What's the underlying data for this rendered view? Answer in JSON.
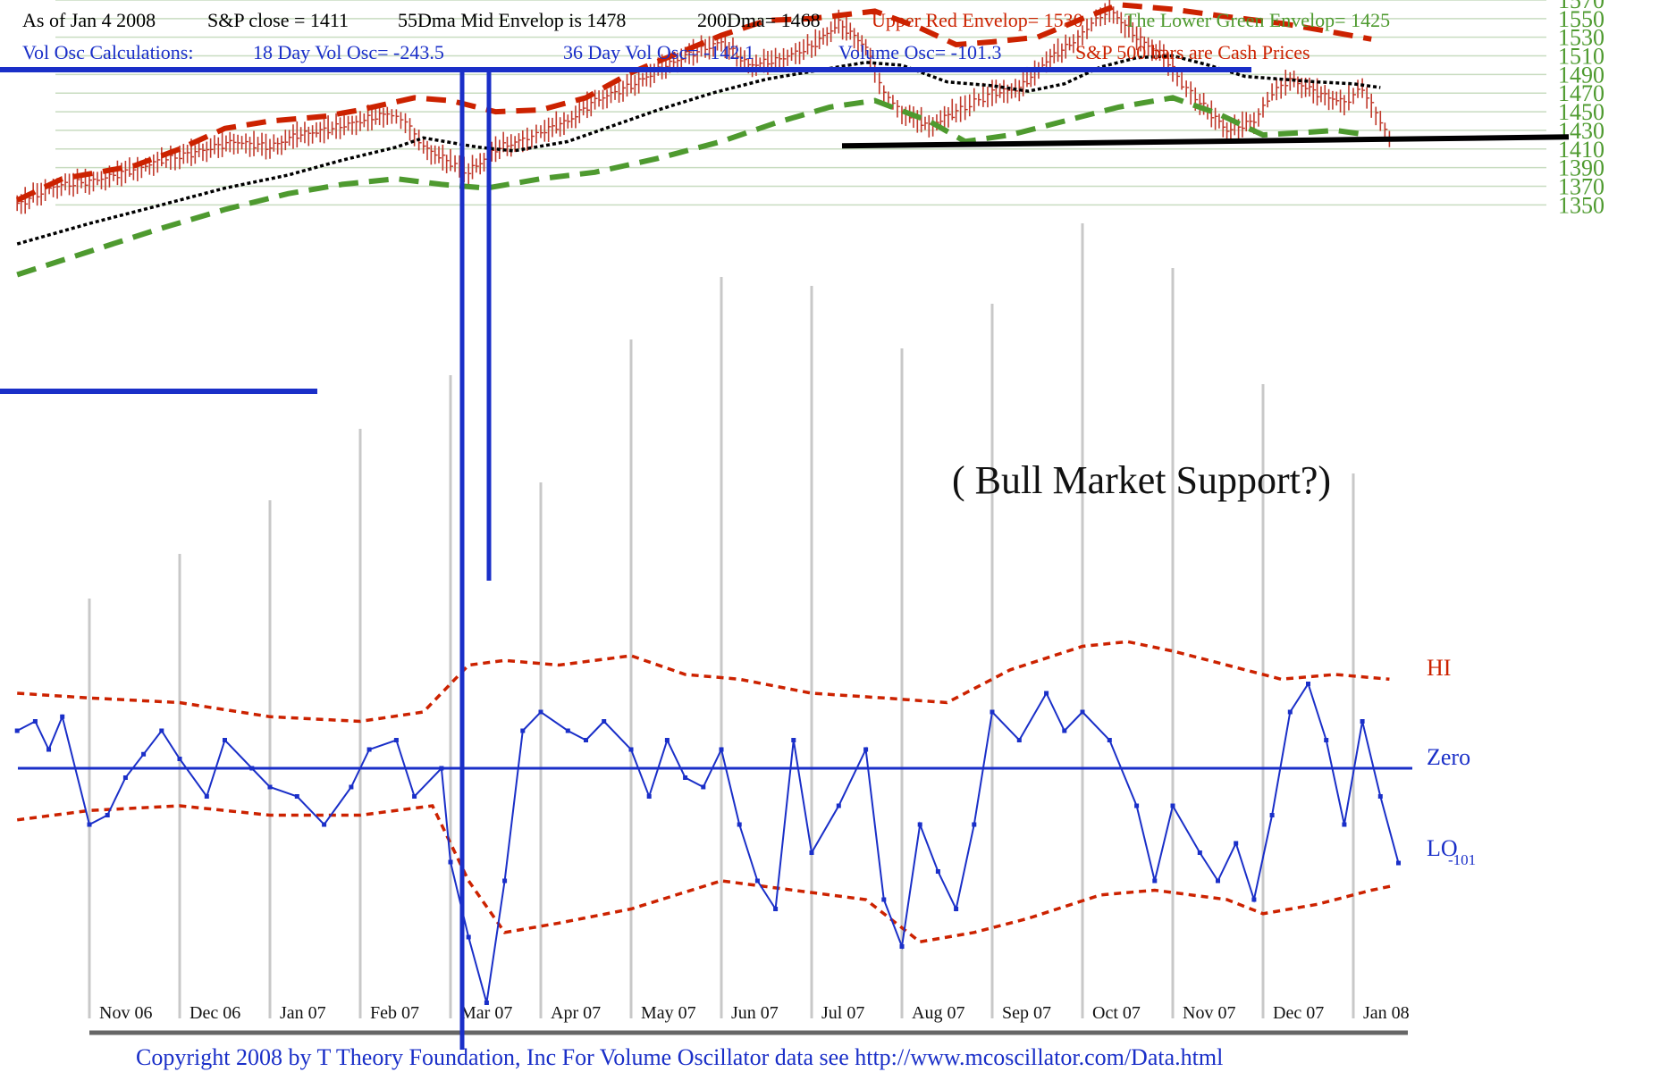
{
  "header": {
    "line1": [
      {
        "text": "As of Jan 4  2008",
        "color": "#000000"
      },
      {
        "text": "S&P close = 1411",
        "color": "#000000"
      },
      {
        "text": "55Dma Mid Envelop is  1478",
        "color": "#000000"
      },
      {
        "text": "200Dma=  1468",
        "color": "#000000"
      },
      {
        "text": "Upper Red Envelop= 1530",
        "color": "#cc2200"
      },
      {
        "text": "The Lower Green Envelop=  1425",
        "color": "#4e9a2f"
      }
    ],
    "line2": [
      {
        "text": "Vol Osc Calculations:",
        "color": "#1a2fc8"
      },
      {
        "text": "18 Day Vol Osc= -243.5",
        "color": "#1a2fc8"
      },
      {
        "text": "36 Day Vol Osc= -142.1",
        "color": "#1a2fc8"
      },
      {
        "text": "Volume Osc= -101.3",
        "color": "#1a2fc8"
      },
      {
        "text": "S&P 500 bars are Cash Prices",
        "color": "#cc2200"
      }
    ]
  },
  "annotation": "( Bull Market Support?)",
  "support_level": 1421,
  "osc_labels": {
    "hi": "HI",
    "zero": "Zero",
    "lo": "LO",
    "lo_value": "-101"
  },
  "copyright": "Copyright 2008 by T Theory Foundation, Inc  For Volume Oscillator data see http://www.mcoscillator.com/Data.html",
  "colors": {
    "price_bars": "#c0392b",
    "upper_envelope": "#cc2200",
    "lower_envelope": "#4e9a2f",
    "mid_dma": "#000000",
    "oscillator": "#1a2fc8",
    "grid": "#c8dcc0",
    "month_lines": "#c8c8c8"
  },
  "chart_data": {
    "type": "line",
    "title": "",
    "x_tick_labels": [
      "Nov 06",
      "Dec 06",
      "Jan 07",
      "Feb 07",
      "Mar 07",
      "Apr 07",
      "May 07",
      "Jun 07",
      "Jul 07",
      "Aug 07",
      "Sep 07",
      "Oct 07",
      "Nov 07",
      "Dec 07",
      "Jan 08"
    ],
    "price_axis": {
      "ticks": [
        1350,
        1370,
        1390,
        1410,
        1430,
        1450,
        1470,
        1490,
        1510,
        1530,
        1550,
        1570
      ],
      "ylim": [
        1340,
        1575
      ]
    },
    "time_axis": {
      "unit": "month index (0 = start of Nov 06)",
      "xlim": [
        -0.8,
        14.5
      ]
    },
    "series": [
      {
        "name": "S&P 500 close (approx.)",
        "points": [
          [
            -0.8,
            1350
          ],
          [
            -0.4,
            1370
          ],
          [
            0.0,
            1375
          ],
          [
            0.4,
            1385
          ],
          [
            0.8,
            1398
          ],
          [
            1.0,
            1402
          ],
          [
            1.3,
            1410
          ],
          [
            1.6,
            1418
          ],
          [
            2.0,
            1412
          ],
          [
            2.3,
            1425
          ],
          [
            2.6,
            1430
          ],
          [
            3.0,
            1440
          ],
          [
            3.3,
            1448
          ],
          [
            3.5,
            1440
          ],
          [
            3.7,
            1412
          ],
          [
            4.0,
            1395
          ],
          [
            4.2,
            1385
          ],
          [
            4.5,
            1410
          ],
          [
            4.8,
            1420
          ],
          [
            5.0,
            1428
          ],
          [
            5.3,
            1440
          ],
          [
            5.6,
            1462
          ],
          [
            6.0,
            1478
          ],
          [
            6.3,
            1495
          ],
          [
            6.6,
            1510
          ],
          [
            7.0,
            1525
          ],
          [
            7.3,
            1500
          ],
          [
            7.6,
            1505
          ],
          [
            8.0,
            1520
          ],
          [
            8.3,
            1545
          ],
          [
            8.6,
            1520
          ],
          [
            8.8,
            1470
          ],
          [
            9.0,
            1450
          ],
          [
            9.3,
            1435
          ],
          [
            9.6,
            1450
          ],
          [
            9.8,
            1460
          ],
          [
            10.0,
            1470
          ],
          [
            10.3,
            1475
          ],
          [
            10.6,
            1505
          ],
          [
            10.9,
            1525
          ],
          [
            11.1,
            1545
          ],
          [
            11.3,
            1560
          ],
          [
            11.6,
            1530
          ],
          [
            11.9,
            1510
          ],
          [
            12.1,
            1480
          ],
          [
            12.3,
            1460
          ],
          [
            12.6,
            1430
          ],
          [
            12.9,
            1440
          ],
          [
            13.1,
            1470
          ],
          [
            13.3,
            1485
          ],
          [
            13.6,
            1470
          ],
          [
            13.9,
            1460
          ],
          [
            14.1,
            1475
          ],
          [
            14.3,
            1440
          ],
          [
            14.45,
            1411
          ]
        ]
      },
      {
        "name": "Upper Red Envelop (approx.)",
        "points": [
          [
            -0.8,
            1355
          ],
          [
            -0.3,
            1378
          ],
          [
            0.5,
            1392
          ],
          [
            1.0,
            1410
          ],
          [
            1.5,
            1432
          ],
          [
            2.0,
            1440
          ],
          [
            2.6,
            1445
          ],
          [
            3.0,
            1452
          ],
          [
            3.6,
            1465
          ],
          [
            4.0,
            1462
          ],
          [
            4.5,
            1450
          ],
          [
            5.0,
            1452
          ],
          [
            5.5,
            1465
          ],
          [
            6.0,
            1492
          ],
          [
            6.5,
            1512
          ],
          [
            7.0,
            1532
          ],
          [
            7.5,
            1548
          ],
          [
            8.0,
            1550
          ],
          [
            8.7,
            1558
          ],
          [
            9.2,
            1540
          ],
          [
            9.6,
            1522
          ],
          [
            10.0,
            1525
          ],
          [
            10.5,
            1530
          ],
          [
            11.0,
            1550
          ],
          [
            11.4,
            1565
          ],
          [
            12.0,
            1560
          ],
          [
            12.6,
            1552
          ],
          [
            13.2,
            1545
          ],
          [
            13.8,
            1535
          ],
          [
            14.2,
            1528
          ]
        ]
      },
      {
        "name": "55Dma Mid Envelop (approx.)",
        "points": [
          [
            -0.8,
            1308
          ],
          [
            0.0,
            1330
          ],
          [
            0.8,
            1350
          ],
          [
            1.5,
            1368
          ],
          [
            2.2,
            1382
          ],
          [
            2.8,
            1398
          ],
          [
            3.4,
            1412
          ],
          [
            3.7,
            1422
          ],
          [
            4.3,
            1412
          ],
          [
            4.7,
            1408
          ],
          [
            5.3,
            1418
          ],
          [
            5.8,
            1435
          ],
          [
            6.3,
            1452
          ],
          [
            6.9,
            1470
          ],
          [
            7.5,
            1485
          ],
          [
            8.1,
            1495
          ],
          [
            8.6,
            1503
          ],
          [
            9.0,
            1500
          ],
          [
            9.5,
            1482
          ],
          [
            10.0,
            1478
          ],
          [
            10.4,
            1472
          ],
          [
            10.8,
            1480
          ],
          [
            11.2,
            1498
          ],
          [
            11.6,
            1508
          ],
          [
            12.0,
            1510
          ],
          [
            12.4,
            1500
          ],
          [
            12.8,
            1488
          ],
          [
            13.2,
            1485
          ],
          [
            13.6,
            1482
          ],
          [
            14.0,
            1480
          ],
          [
            14.3,
            1476
          ]
        ]
      },
      {
        "name": "Lower Green Envelop (approx.)",
        "points": [
          [
            -0.8,
            1275
          ],
          [
            0.0,
            1300
          ],
          [
            0.8,
            1325
          ],
          [
            1.5,
            1345
          ],
          [
            2.2,
            1362
          ],
          [
            2.8,
            1372
          ],
          [
            3.4,
            1378
          ],
          [
            3.9,
            1372
          ],
          [
            4.4,
            1368
          ],
          [
            5.0,
            1378
          ],
          [
            5.6,
            1385
          ],
          [
            6.3,
            1400
          ],
          [
            7.0,
            1418
          ],
          [
            7.6,
            1438
          ],
          [
            8.2,
            1455
          ],
          [
            8.7,
            1462
          ],
          [
            9.3,
            1440
          ],
          [
            9.7,
            1418
          ],
          [
            10.2,
            1425
          ],
          [
            10.8,
            1440
          ],
          [
            11.4,
            1455
          ],
          [
            12.0,
            1465
          ],
          [
            12.5,
            1448
          ],
          [
            13.0,
            1425
          ],
          [
            13.5,
            1428
          ],
          [
            13.8,
            1430
          ],
          [
            14.1,
            1426
          ]
        ]
      }
    ],
    "oscillator": {
      "ylim": [
        -260,
        150
      ],
      "zero": 0,
      "current": -101,
      "series": [
        {
          "name": "Volume Osc (approx.)",
          "points": [
            [
              -0.8,
              40
            ],
            [
              -0.6,
              50
            ],
            [
              -0.45,
              20
            ],
            [
              -0.3,
              55
            ],
            [
              0.0,
              -60
            ],
            [
              0.2,
              -50
            ],
            [
              0.4,
              -10
            ],
            [
              0.6,
              15
            ],
            [
              0.8,
              40
            ],
            [
              1.0,
              10
            ],
            [
              1.3,
              -30
            ],
            [
              1.5,
              30
            ],
            [
              1.8,
              0
            ],
            [
              2.0,
              -20
            ],
            [
              2.3,
              -30
            ],
            [
              2.6,
              -60
            ],
            [
              2.9,
              -20
            ],
            [
              3.1,
              20
            ],
            [
              3.4,
              30
            ],
            [
              3.6,
              -30
            ],
            [
              3.9,
              0
            ],
            [
              4.0,
              -100
            ],
            [
              4.2,
              -180
            ],
            [
              4.4,
              -250
            ],
            [
              4.6,
              -120
            ],
            [
              4.8,
              40
            ],
            [
              5.0,
              60
            ],
            [
              5.3,
              40
            ],
            [
              5.5,
              30
            ],
            [
              5.7,
              50
            ],
            [
              6.0,
              20
            ],
            [
              6.2,
              -30
            ],
            [
              6.4,
              30
            ],
            [
              6.6,
              -10
            ],
            [
              6.8,
              -20
            ],
            [
              7.0,
              20
            ],
            [
              7.2,
              -60
            ],
            [
              7.4,
              -120
            ],
            [
              7.6,
              -150
            ],
            [
              7.8,
              30
            ],
            [
              8.0,
              -90
            ],
            [
              8.3,
              -40
            ],
            [
              8.6,
              20
            ],
            [
              8.8,
              -140
            ],
            [
              9.0,
              -190
            ],
            [
              9.2,
              -60
            ],
            [
              9.4,
              -110
            ],
            [
              9.6,
              -150
            ],
            [
              9.8,
              -60
            ],
            [
              10.0,
              60
            ],
            [
              10.3,
              30
            ],
            [
              10.6,
              80
            ],
            [
              10.8,
              40
            ],
            [
              11.0,
              60
            ],
            [
              11.3,
              30
            ],
            [
              11.6,
              -40
            ],
            [
              11.8,
              -120
            ],
            [
              12.0,
              -40
            ],
            [
              12.3,
              -90
            ],
            [
              12.5,
              -120
            ],
            [
              12.7,
              -80
            ],
            [
              12.9,
              -140
            ],
            [
              13.1,
              -50
            ],
            [
              13.3,
              60
            ],
            [
              13.5,
              90
            ],
            [
              13.7,
              30
            ],
            [
              13.9,
              -60
            ],
            [
              14.1,
              50
            ],
            [
              14.3,
              -30
            ],
            [
              14.5,
              -101
            ]
          ]
        },
        {
          "name": "HI band (approx.)",
          "points": [
            [
              -0.8,
              80
            ],
            [
              0.0,
              75
            ],
            [
              1.0,
              70
            ],
            [
              2.0,
              55
            ],
            [
              3.0,
              50
            ],
            [
              3.7,
              60
            ],
            [
              4.2,
              110
            ],
            [
              4.6,
              115
            ],
            [
              5.2,
              110
            ],
            [
              6.0,
              120
            ],
            [
              6.6,
              100
            ],
            [
              7.2,
              95
            ],
            [
              8.0,
              80
            ],
            [
              8.8,
              75
            ],
            [
              9.5,
              70
            ],
            [
              10.2,
              105
            ],
            [
              11.0,
              130
            ],
            [
              11.5,
              135
            ],
            [
              12.0,
              125
            ],
            [
              12.6,
              110
            ],
            [
              13.2,
              95
            ],
            [
              13.8,
              100
            ],
            [
              14.4,
              95
            ]
          ]
        },
        {
          "name": "LO band (approx.)",
          "points": [
            [
              -0.8,
              -55
            ],
            [
              0.0,
              -45
            ],
            [
              1.0,
              -40
            ],
            [
              2.0,
              -50
            ],
            [
              3.0,
              -50
            ],
            [
              3.8,
              -40
            ],
            [
              4.2,
              -120
            ],
            [
              4.6,
              -175
            ],
            [
              5.2,
              -165
            ],
            [
              6.0,
              -150
            ],
            [
              7.0,
              -120
            ],
            [
              7.8,
              -130
            ],
            [
              8.6,
              -140
            ],
            [
              9.2,
              -185
            ],
            [
              9.8,
              -175
            ],
            [
              10.4,
              -160
            ],
            [
              11.2,
              -135
            ],
            [
              11.8,
              -130
            ],
            [
              12.6,
              -140
            ],
            [
              13.0,
              -155
            ],
            [
              13.6,
              -145
            ],
            [
              14.2,
              -130
            ],
            [
              14.45,
              -125
            ]
          ]
        }
      ]
    }
  }
}
